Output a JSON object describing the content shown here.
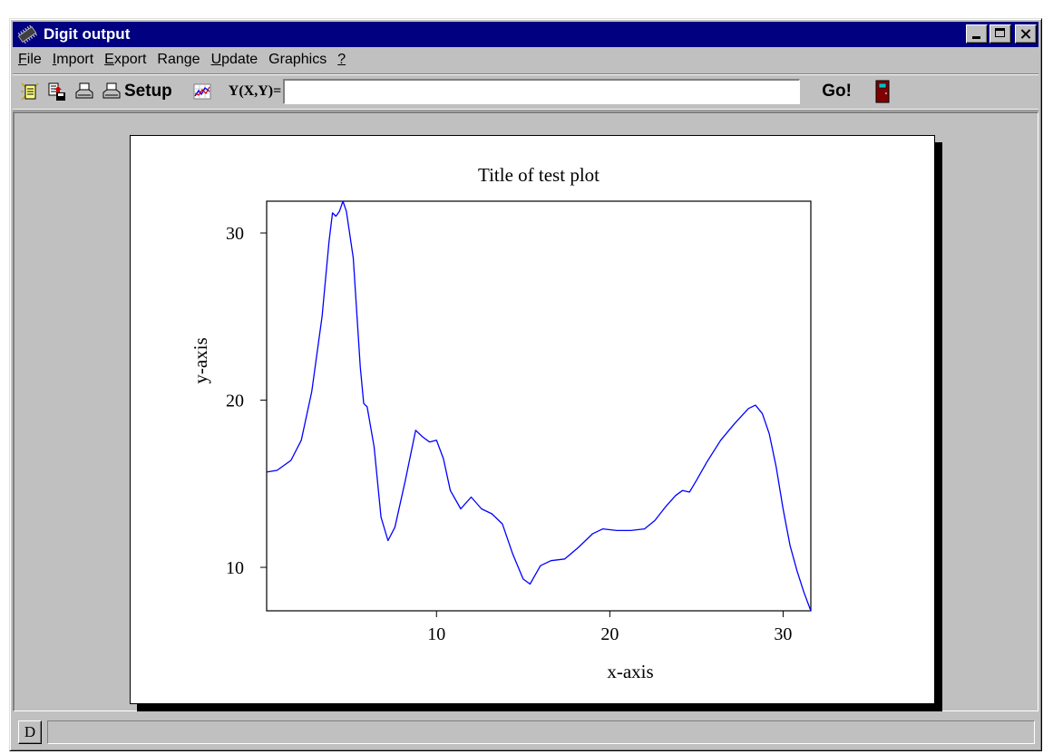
{
  "window": {
    "title": "Digit output"
  },
  "menu": [
    {
      "pre": "",
      "key": "F",
      "post": "ile"
    },
    {
      "pre": "",
      "key": "I",
      "post": "mport"
    },
    {
      "pre": "",
      "key": "E",
      "post": "xport"
    },
    {
      "pre": "Range",
      "key": "",
      "post": ""
    },
    {
      "pre": "",
      "key": "U",
      "post": "pdate"
    },
    {
      "pre": "Graphics",
      "key": "",
      "post": ""
    },
    {
      "pre": "",
      "key": "?",
      "post": ""
    }
  ],
  "toolbar": {
    "setup_label": "Setup",
    "equation_label": "Y(X,Y)=",
    "equation_value": "",
    "go_label": "Go!",
    "icons": [
      "new-document-icon",
      "save-document-icon",
      "print-icon",
      "print-setup-icon",
      "chart-icon",
      "exit-door-icon"
    ]
  },
  "statusbar": {
    "mode_label": "D",
    "message": ""
  },
  "chart_data": {
    "type": "line",
    "title": "Title of test plot",
    "xlabel": "x-axis",
    "ylabel": "y-axis",
    "xlim": [
      0.2,
      31.6
    ],
    "ylim": [
      7.4,
      31.9
    ],
    "xticks": [
      10,
      20,
      30
    ],
    "yticks": [
      10,
      20,
      30
    ],
    "grid": false,
    "line_color": "#0000ff",
    "x": [
      0.2,
      0.8,
      1.6,
      2.2,
      2.8,
      3.4,
      3.8,
      4.0,
      4.2,
      4.4,
      4.6,
      4.8,
      5.2,
      5.6,
      5.8,
      6.0,
      6.4,
      6.8,
      7.2,
      7.6,
      8.2,
      8.8,
      9.2,
      9.6,
      10.0,
      10.4,
      10.8,
      11.4,
      12.0,
      12.6,
      13.2,
      13.8,
      14.4,
      15.0,
      15.4,
      16.0,
      16.6,
      17.4,
      18.2,
      19.0,
      19.6,
      20.4,
      21.2,
      22.0,
      22.6,
      23.2,
      23.8,
      24.2,
      24.6,
      25.0,
      25.6,
      26.4,
      27.2,
      28.0,
      28.4,
      28.8,
      29.2,
      29.6,
      30.0,
      30.4,
      30.8,
      31.2,
      31.6
    ],
    "y": [
      15.7,
      15.8,
      16.4,
      17.6,
      20.5,
      25.0,
      29.5,
      31.2,
      31.0,
      31.3,
      31.9,
      31.3,
      28.5,
      22.0,
      19.8,
      19.6,
      17.2,
      13.0,
      11.6,
      12.4,
      15.2,
      18.2,
      17.8,
      17.5,
      17.6,
      16.5,
      14.6,
      13.5,
      14.2,
      13.5,
      13.2,
      12.6,
      10.8,
      9.3,
      9.0,
      10.1,
      10.4,
      10.5,
      11.2,
      12.0,
      12.3,
      12.2,
      12.2,
      12.3,
      12.8,
      13.6,
      14.3,
      14.6,
      14.5,
      15.2,
      16.3,
      17.6,
      18.6,
      19.5,
      19.7,
      19.2,
      18.0,
      16.0,
      13.5,
      11.3,
      9.8,
      8.5,
      7.4
    ]
  }
}
